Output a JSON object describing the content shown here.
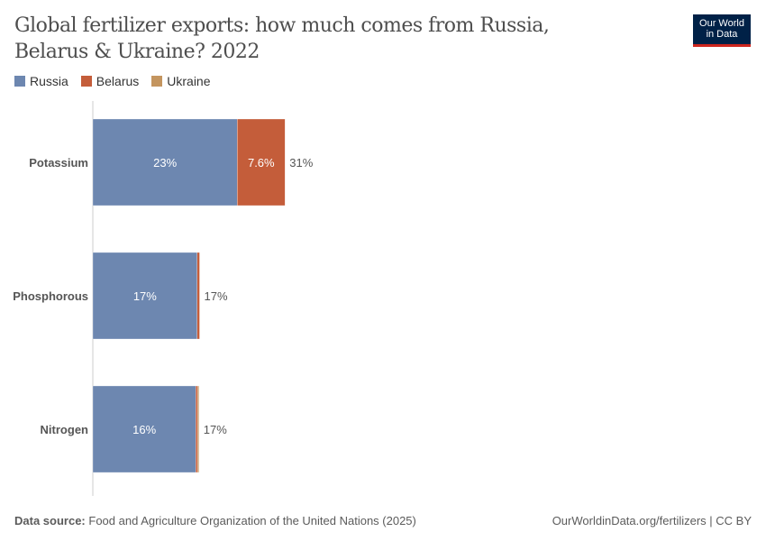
{
  "title": "Global fertilizer exports: how much comes from Russia, Belarus & Ukraine? 2022",
  "logo": "Our World in Data",
  "footer": {
    "source_label": "Data source:",
    "source": "Food and Agriculture Organization of the United Nations (2025)",
    "link": "OurWorldinData.org/fertilizers | CC BY"
  },
  "chart_data": {
    "type": "bar",
    "orientation": "horizontal",
    "stacked": true,
    "title": "Global fertilizer exports: how much comes from Russia, Belarus & Ukraine? 2022",
    "categories": [
      "Potassium",
      "Phosphorous",
      "Nitrogen"
    ],
    "series": [
      {
        "name": "Russia",
        "color": "#6d87b0",
        "values": [
          23,
          16.6,
          16.4
        ],
        "labels": [
          "23%",
          "17%",
          "16%"
        ]
      },
      {
        "name": "Belarus",
        "color": "#c45d3a",
        "values": [
          7.6,
          0.4,
          0.3
        ],
        "labels": [
          "7.6%",
          "",
          ""
        ]
      },
      {
        "name": "Ukraine",
        "color": "#c4955f",
        "values": [
          0,
          0,
          0.2
        ],
        "labels": [
          "",
          "",
          ""
        ]
      }
    ],
    "totals": [
      "31%",
      "17%",
      "17%"
    ],
    "legend_position": "top-left",
    "xlim": [
      0,
      100
    ],
    "grid": false
  }
}
